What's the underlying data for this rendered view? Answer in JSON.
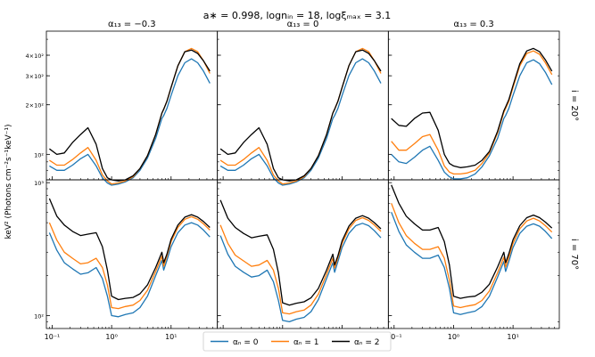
{
  "chart_data": {
    "type": "line",
    "title": "a∗ = 0.998, lognᵢₙ = 18, logξₘₐₓ = 3.1",
    "column_titles": [
      "α₁₃ = −0.3",
      "α₁₃ = 0",
      "α₁₃ = 0.3"
    ],
    "row_labels": [
      "i = 20°",
      "i = 70°"
    ],
    "ylabel": "keV² (Photons cm⁻²s⁻¹keV⁻¹)",
    "xscale": "log",
    "yscale": "log",
    "xlim": [
      0.08,
      60
    ],
    "xticks": [
      {
        "value": 0.1,
        "label": "10⁻¹"
      },
      {
        "value": 1,
        "label": "10⁰"
      },
      {
        "value": 10,
        "label": "10¹"
      }
    ],
    "rows": [
      {
        "ylim": [
          70,
          560
        ],
        "yticks": [
          {
            "value": 100,
            "label": "10²"
          },
          {
            "value": 200,
            "label": "2×10²"
          },
          {
            "value": 300,
            "label": "3×10²"
          },
          {
            "value": 400,
            "label": "4×10²"
          }
        ]
      },
      {
        "ylim": [
          80,
          1050
        ],
        "yticks": [
          {
            "value": 100,
            "label": "10²"
          },
          {
            "value": 1000,
            "label": "10³"
          }
        ]
      }
    ],
    "x": [
      0.09,
      0.12,
      0.16,
      0.22,
      0.3,
      0.4,
      0.55,
      0.7,
      0.85,
      1.0,
      1.3,
      1.7,
      2.3,
      3.0,
      4.0,
      5.5,
      7.0,
      7.5,
      8.5,
      10,
      13,
      17,
      22,
      28,
      35,
      45
    ],
    "legend": [
      "αₙ = 0",
      "αₙ = 1",
      "αₙ = 2"
    ],
    "series_colors": [
      "#1f77b4",
      "#ff7f0e",
      "#000000"
    ],
    "panels": [
      {
        "row": 0,
        "col": 0,
        "series": [
          {
            "name": "αₙ = 0",
            "values": [
              85,
              80,
              80,
              86,
              94,
              100,
              85,
              72,
              67,
              65,
              66,
              68,
              72,
              80,
              95,
              125,
              165,
              172,
              190,
              228,
              300,
              360,
              380,
              360,
              320,
              270
            ]
          },
          {
            "name": "αₙ = 1",
            "values": [
              92,
              86,
              86,
              93,
              102,
              110,
              92,
              75,
              69,
              66,
              67,
              69,
              73,
              82,
              98,
              132,
              178,
              188,
              210,
              255,
              345,
              420,
              440,
              420,
              370,
              310
            ]
          },
          {
            "name": "αₙ = 2",
            "values": [
              108,
              100,
              102,
              118,
              132,
              145,
              115,
              82,
              72,
              70,
              69,
              70,
              74,
              82,
              98,
              132,
              178,
              188,
              210,
              255,
              345,
              420,
              430,
              410,
              370,
              320
            ]
          }
        ]
      },
      {
        "row": 0,
        "col": 1,
        "series": [
          {
            "name": "αₙ = 0",
            "values": [
              85,
              80,
              80,
              86,
              94,
              100,
              85,
              72,
              67,
              65,
              66,
              68,
              72,
              80,
              95,
              125,
              165,
              172,
              190,
              228,
              300,
              360,
              380,
              360,
              320,
              270
            ]
          },
          {
            "name": "αₙ = 1",
            "values": [
              92,
              86,
              86,
              93,
              102,
              110,
              92,
              75,
              69,
              66,
              67,
              69,
              73,
              82,
              98,
              132,
              178,
              188,
              210,
              255,
              345,
              420,
              440,
              420,
              370,
              310
            ]
          },
          {
            "name": "αₙ = 2",
            "values": [
              108,
              100,
              102,
              118,
              132,
              145,
              115,
              82,
              72,
              70,
              69,
              70,
              74,
              82,
              98,
              132,
              178,
              188,
              210,
              255,
              345,
              420,
              430,
              410,
              370,
              320
            ]
          }
        ]
      },
      {
        "row": 0,
        "col": 2,
        "series": [
          {
            "name": "αₙ = 0",
            "values": [
              100,
              90,
              88,
              96,
              106,
              112,
              92,
              78,
              73,
              71,
              71,
              72,
              76,
              84,
              98,
              125,
              165,
              172,
              190,
              228,
              300,
              360,
              375,
              355,
              315,
              265
            ]
          },
          {
            "name": "αₙ = 1",
            "values": [
              120,
              106,
              106,
              116,
              128,
              132,
              106,
              85,
              78,
              76,
              76,
              77,
              80,
              88,
              102,
              135,
              180,
              190,
              210,
              255,
              345,
              410,
              425,
              405,
              360,
              305
            ]
          },
          {
            "name": "αₙ = 2",
            "values": [
              165,
              150,
              148,
              165,
              178,
              180,
              140,
              100,
              88,
              85,
              83,
              84,
              86,
              92,
              104,
              138,
              184,
              194,
              215,
              262,
              355,
              425,
              440,
              420,
              375,
              320
            ]
          }
        ]
      },
      {
        "row": 1,
        "col": 0,
        "series": [
          {
            "name": "αₙ = 0",
            "values": [
              420,
              310,
              250,
              225,
              205,
              210,
              230,
              190,
              140,
              100,
              98,
              102,
              105,
              115,
              140,
              200,
              260,
              220,
              260,
              330,
              420,
              480,
              500,
              480,
              440,
              390
            ]
          },
          {
            "name": "αₙ = 1",
            "values": [
              500,
              370,
              300,
              270,
              245,
              250,
              270,
              230,
              170,
              115,
              113,
              117,
              120,
              130,
              155,
              215,
              280,
              235,
              280,
              360,
              460,
              530,
              555,
              530,
              490,
              440
            ]
          },
          {
            "name": "αₙ = 2",
            "values": [
              760,
              560,
              480,
              430,
              400,
              410,
              420,
              330,
              220,
              140,
              132,
              135,
              137,
              146,
              170,
              230,
              300,
              250,
              290,
              375,
              480,
              550,
              575,
              550,
              510,
              460
            ]
          }
        ]
      },
      {
        "row": 1,
        "col": 1,
        "series": [
          {
            "name": "αₙ = 0",
            "values": [
              400,
              290,
              235,
              212,
              195,
              200,
              220,
              180,
              130,
              92,
              90,
              94,
              97,
              107,
              132,
              190,
              250,
              212,
              255,
              325,
              415,
              475,
              495,
              475,
              435,
              385
            ]
          },
          {
            "name": "αₙ = 1",
            "values": [
              480,
              350,
              285,
              258,
              235,
              240,
              260,
              220,
              160,
              105,
              103,
              107,
              110,
              120,
              145,
              205,
              270,
              228,
              272,
              350,
              450,
              520,
              545,
              520,
              480,
              430
            ]
          },
          {
            "name": "αₙ = 2",
            "values": [
              740,
              540,
              460,
              415,
              385,
              395,
              405,
              315,
              210,
              125,
              120,
              124,
              127,
              136,
              160,
              220,
              290,
              240,
              282,
              365,
              470,
              540,
              565,
              540,
              500,
              450
            ]
          }
        ]
      },
      {
        "row": 1,
        "col": 2,
        "series": [
          {
            "name": "αₙ = 0",
            "values": [
              600,
              430,
              340,
              300,
              270,
              270,
              285,
              230,
              160,
              105,
              102,
              105,
              108,
              117,
              140,
              195,
              255,
              215,
              255,
              325,
              415,
              470,
              490,
              470,
              430,
              380
            ]
          },
          {
            "name": "αₙ = 1",
            "values": [
              700,
              500,
              400,
              350,
              315,
              315,
              330,
              270,
              185,
              118,
              115,
              118,
              121,
              130,
              153,
              210,
              275,
              232,
              275,
              350,
              450,
              515,
              540,
              515,
              475,
              425
            ]
          },
          {
            "name": "αₙ = 2",
            "values": [
              960,
              700,
              560,
              490,
              440,
              440,
              460,
              360,
              240,
              140,
              135,
              138,
              140,
              150,
              172,
              232,
              300,
              250,
              292,
              372,
              475,
              545,
              570,
              545,
              505,
              455
            ]
          }
        ]
      }
    ]
  }
}
